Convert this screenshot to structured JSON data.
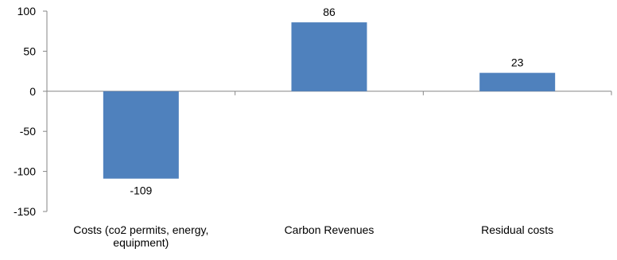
{
  "chart_data": {
    "type": "bar",
    "categories": [
      "Costs (co2 permits, energy, equipment)",
      "Carbon Revenues",
      "Residual costs"
    ],
    "category_label_lines": [
      [
        "Costs (co2 permits, energy,",
        "equipment)"
      ],
      [
        "Carbon Revenues"
      ],
      [
        "Residual costs"
      ]
    ],
    "values": [
      -109,
      86,
      23
    ],
    "data_labels": [
      "-109",
      "86",
      "23"
    ],
    "title": "",
    "xlabel": "",
    "ylabel": "",
    "ylim": [
      -150,
      100
    ],
    "yticks": [
      100,
      50,
      0,
      -50,
      -100,
      -150
    ],
    "ytick_labels": [
      "100",
      "50",
      "0",
      "-50",
      "-100",
      "-150"
    ],
    "bar_color": "#4f81bd",
    "axis_color": "#868686",
    "grid": false,
    "legend": "none"
  }
}
